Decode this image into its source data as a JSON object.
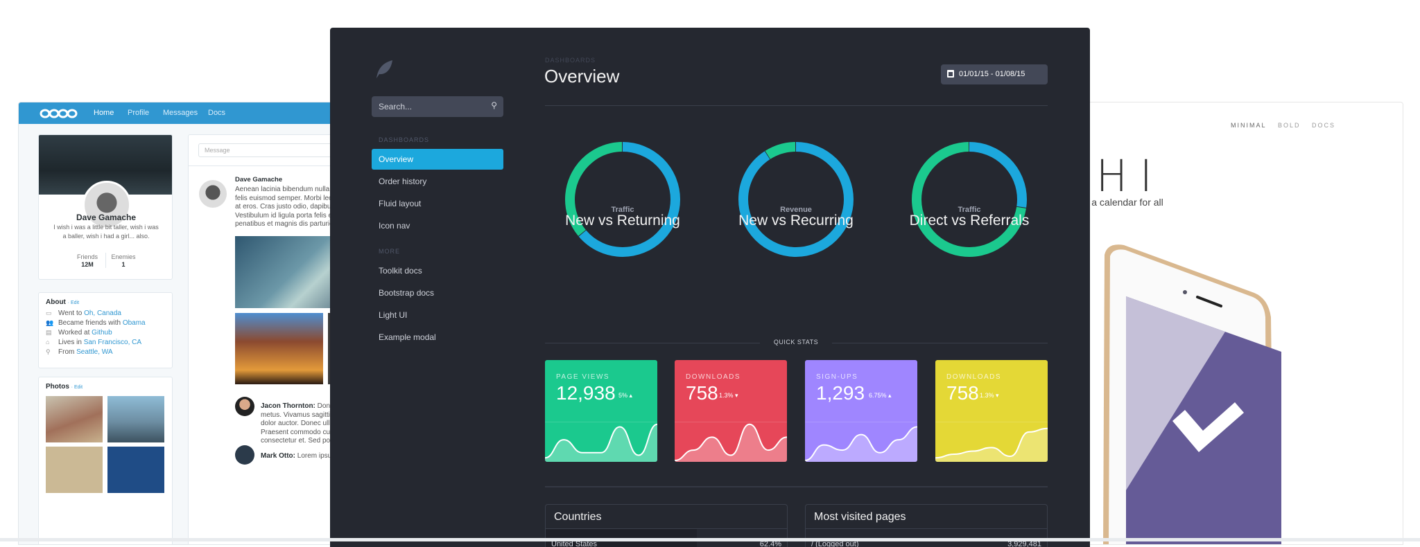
{
  "left_window": {
    "nav": {
      "logo": "oooo",
      "items": [
        "Home",
        "Profile",
        "Messages",
        "Docs"
      ],
      "color": "#3097d1"
    },
    "profile": {
      "name": "Dave Gamache",
      "bio_line1": "I wish i was a little bit taller, wish i was",
      "bio_line2": "a baller, wish i had a girl... also.",
      "friends_label": "Friends",
      "friends_value": "12M",
      "enemies_label": "Enemies",
      "enemies_value": "1"
    },
    "about": {
      "title": "About",
      "edit": "· Edit",
      "items": [
        {
          "icon": "calendar-icon",
          "text": "Went to ",
          "link": "Oh, Canada"
        },
        {
          "icon": "users-icon",
          "text": "Became friends with ",
          "link": "Obama"
        },
        {
          "icon": "briefcase-icon",
          "text": "Worked at ",
          "link": "Github"
        },
        {
          "icon": "home-icon",
          "text": "Lives in ",
          "link": "San Francisco, CA"
        },
        {
          "icon": "location-pin-icon",
          "text": "From ",
          "link": "Seattle, WA"
        }
      ]
    },
    "photos": {
      "title": "Photos",
      "edit": "· Edit"
    },
    "feed": {
      "message_placeholder": "Message",
      "post": {
        "author": "Dave Gamache",
        "lines": [
          "Aenean lacinia bibendum nulla s",
          "felis euismod semper. Morbi leo",
          "at eros. Cras justo odio, dapibus",
          "Vestibulum id ligula porta felis e",
          "penatibus et magnis dis parturie"
        ]
      },
      "comments": [
        {
          "author": "Jacon Thornton:",
          "lines": [
            " Done",
            "metus. Vivamus sagittis",
            "dolor auctor. Donec ull",
            "Praesent commodo cu",
            "consectetur et. Sed pos"
          ]
        },
        {
          "author": "Mark Otto:",
          "lines": [
            " Lorem ipsu"
          ]
        }
      ]
    }
  },
  "dashboard": {
    "sidebar": {
      "search_placeholder": "Search...",
      "section1": "DASHBOARDS",
      "items1": [
        "Overview",
        "Order history",
        "Fluid layout",
        "Icon nav"
      ],
      "active": "Overview",
      "section2": "MORE",
      "items2": [
        "Toolkit docs",
        "Bootstrap docs",
        "Light UI",
        "Example modal"
      ]
    },
    "header": {
      "eyebrow": "DASHBOARDS",
      "title": "Overview",
      "date_range": "01/01/15 - 01/08/15"
    },
    "colors": {
      "blue": "#1ca8dd",
      "green": "#1bc98e",
      "red": "#e64759",
      "purple": "#9f86ff",
      "yellow": "#e4d836"
    },
    "donuts": [
      {
        "label": "Traffic",
        "title": "New vs Returning",
        "blue_pct": 64,
        "green_pct": 36
      },
      {
        "label": "Revenue",
        "title": "New vs Recurring",
        "blue_pct": 91,
        "green_pct": 9
      },
      {
        "label": "Traffic",
        "title": "Direct vs Referrals",
        "blue_pct": 27.5,
        "green_pct": 72.5
      }
    ],
    "quick_stats_label": "QUICK STATS",
    "stats": [
      {
        "label": "PAGE VIEWS",
        "value": "12,938",
        "delta": "5%",
        "trend": "up",
        "color": "#1bc98e",
        "spark": [
          5,
          40,
          15,
          15,
          65,
          10,
          70
        ]
      },
      {
        "label": "DOWNLOADS",
        "value": "758",
        "delta": "1.3%",
        "trend": "down",
        "color": "#e64759",
        "spark": [
          0,
          20,
          45,
          10,
          70,
          20,
          45
        ]
      },
      {
        "label": "SIGN-UPS",
        "value": "1,293",
        "delta": "6.75%",
        "trend": "up",
        "color": "#9f86ff",
        "spark": [
          0,
          30,
          20,
          50,
          15,
          40,
          65
        ]
      },
      {
        "label": "DOWNLOADS",
        "value": "758",
        "delta": "1.3%",
        "trend": "down",
        "color": "#e4d836",
        "spark": [
          5,
          12,
          18,
          25,
          8,
          55,
          62
        ]
      }
    ],
    "panels": [
      {
        "title": "Countries",
        "row_label": "United States",
        "row_value": "62.4%"
      },
      {
        "title": "Most visited pages",
        "row_label": "/ (Logged out)",
        "row_value": "3,929,481"
      }
    ]
  },
  "right_window": {
    "nav": [
      "MINIMAL",
      "BOLD",
      "DOCS"
    ],
    "title": "CHI",
    "subtitle": "and a calendar for all"
  }
}
